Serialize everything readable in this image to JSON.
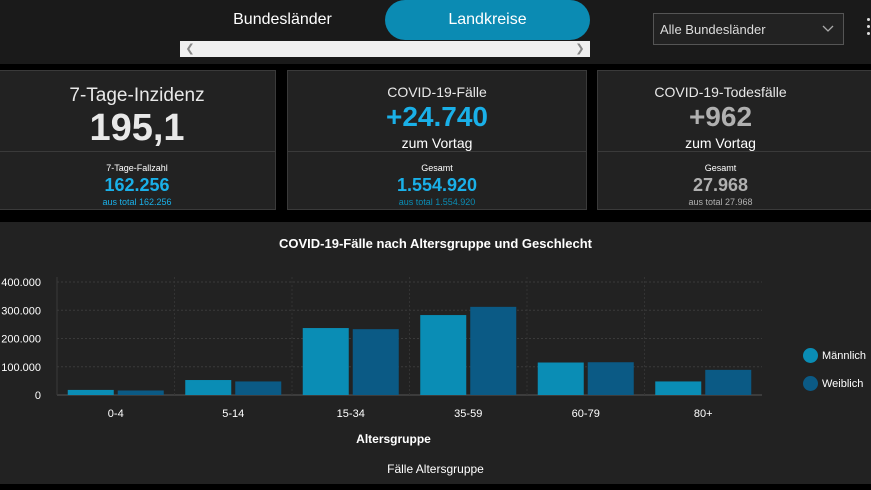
{
  "header": {
    "tabs": [
      {
        "label": "Bundesländer",
        "active": false
      },
      {
        "label": "Landkreise",
        "active": true
      }
    ],
    "filter": {
      "selected": "Alle Bundesländer"
    }
  },
  "cards": {
    "incidence": {
      "title": "7-Tage-Inzidenz",
      "value": "195,1",
      "sub_label": "7-Tage-Fallzahl",
      "sub_value": "162.256",
      "sub_total": "aus total 162.256"
    },
    "cases": {
      "title": "COVID-19-Fälle",
      "value": "+24.740",
      "suffix": "zum Vortag",
      "sub_label": "Gesamt",
      "sub_value": "1.554.920",
      "sub_total": "aus total 1.554.920"
    },
    "deaths": {
      "title": "COVID-19-Todesfälle",
      "value": "+962",
      "suffix": "zum Vortag",
      "sub_label": "Gesamt",
      "sub_value": "27.968",
      "sub_total": "aus total 27.968"
    }
  },
  "colors": {
    "accent": "#1ab0e8",
    "male": "#0a8db5",
    "female": "#0b5a85",
    "deaths": "#b0b0b0"
  },
  "chart_data": {
    "type": "bar",
    "title": "COVID-19-Fälle nach Altersgruppe und Geschlecht",
    "xlabel": "Altersgruppe",
    "ylabel": "",
    "categories": [
      "0-4",
      "5-14",
      "15-34",
      "35-59",
      "60-79",
      "80+"
    ],
    "series": [
      {
        "name": "Männlich",
        "values": [
          18000,
          53000,
          237000,
          283000,
          115000,
          48000
        ]
      },
      {
        "name": "Weiblich",
        "values": [
          16000,
          48000,
          233000,
          312000,
          116000,
          89000
        ]
      }
    ],
    "yticks": [
      "0",
      "100.000",
      "200.000",
      "300.000",
      "400.000"
    ],
    "ylim": [
      0,
      400000
    ],
    "grid": true,
    "legend": "right"
  },
  "footer": {
    "label": "Fälle Altersgruppe"
  }
}
